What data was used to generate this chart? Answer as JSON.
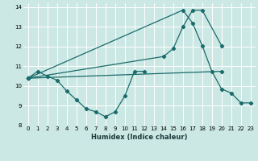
{
  "xlabel": "Humidex (Indice chaleur)",
  "xlim": [
    -0.5,
    23.5
  ],
  "ylim": [
    8,
    14.2
  ],
  "yticks": [
    8,
    9,
    10,
    11,
    12,
    13,
    14
  ],
  "xticks": [
    0,
    1,
    2,
    3,
    4,
    5,
    6,
    7,
    8,
    9,
    10,
    11,
    12,
    13,
    14,
    15,
    16,
    17,
    18,
    19,
    20,
    21,
    22,
    23
  ],
  "bg_color": "#cce8e4",
  "grid_color": "#ffffff",
  "line_color": "#1a6b6b",
  "line1_x": [
    0,
    1,
    2,
    3,
    4,
    5,
    6,
    7,
    8,
    9,
    10,
    11,
    12
  ],
  "line1_y": [
    10.4,
    10.75,
    10.5,
    10.3,
    9.75,
    9.3,
    8.85,
    8.7,
    8.45,
    8.7,
    9.5,
    10.75,
    10.75
  ],
  "line2_x": [
    0,
    20
  ],
  "line2_y": [
    10.4,
    10.75
  ],
  "line3_x": [
    0,
    14,
    15,
    16,
    17,
    18,
    20
  ],
  "line3_y": [
    10.4,
    11.5,
    11.9,
    13.0,
    13.85,
    13.85,
    12.05
  ],
  "line4_x": [
    0,
    16,
    17,
    18,
    19,
    20,
    21,
    22,
    23
  ],
  "line4_y": [
    10.4,
    13.85,
    13.2,
    12.05,
    10.75,
    9.85,
    9.65,
    9.15,
    9.15
  ]
}
